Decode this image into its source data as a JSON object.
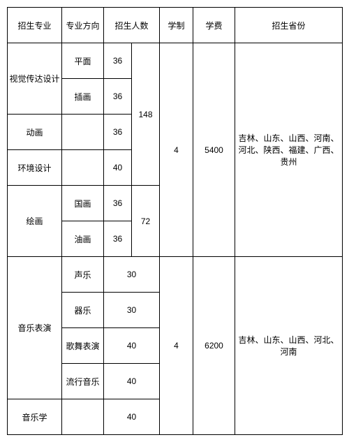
{
  "headers": {
    "major": "招生专业",
    "direction": "专业方向",
    "count": "招生人数",
    "duration": "学制",
    "fee": "学费",
    "province": "招生省份"
  },
  "block1": {
    "major_visual": "视觉传达设计",
    "dir_pingmian": "平面",
    "cnt_pingmian": "36",
    "dir_chahua": "插画",
    "cnt_chahua": "36",
    "major_donghua": "动画",
    "cnt_donghua": "36",
    "major_huanjing": "环境设计",
    "cnt_huanjing": "40",
    "subtotal1": "148",
    "major_huihua": "绘画",
    "dir_guohua": "国画",
    "cnt_guohua": "36",
    "dir_youhua": "油画",
    "cnt_youhua": "36",
    "subtotal2": "72",
    "duration": "4",
    "fee": "5400",
    "province": "吉林、山东、山西、河南、河北、陕西、福建、广西、贵州"
  },
  "block2": {
    "major_yinyue": "音乐表演",
    "dir_shengyue": "声乐",
    "cnt_shengyue": "30",
    "dir_qiyue": "器乐",
    "cnt_qiyue": "30",
    "dir_gewu": "歌舞表演",
    "cnt_gewu": "40",
    "dir_liuxing": "流行音乐",
    "cnt_liuxing": "40",
    "major_yinyuexue": "音乐学",
    "cnt_yinyuexue": "40",
    "duration": "4",
    "fee": "6200",
    "province": "吉林、山东、山西、河北、河南"
  }
}
